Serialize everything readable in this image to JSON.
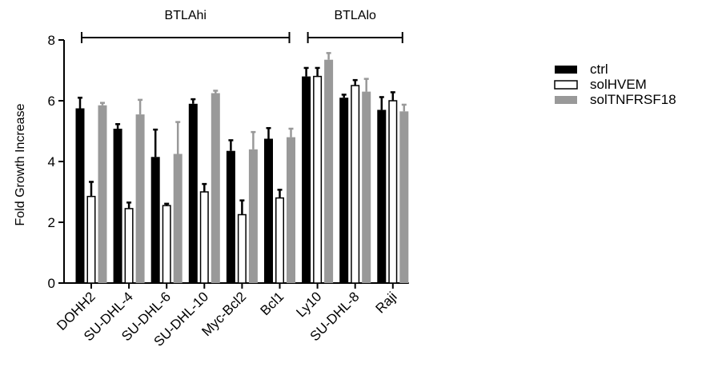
{
  "chart_data": {
    "type": "bar",
    "ylabel": "Fold Growth Increase",
    "xlabel": "",
    "ylim": [
      0,
      8
    ],
    "yticks": [
      0,
      2,
      4,
      6,
      8
    ],
    "categories": [
      "DOHH2",
      "SU-DHL-4",
      "SU-DHL-6",
      "SU-DHL-10",
      "Myc-Bcl2",
      "Bcl1",
      "Ly10",
      "SU-DHL-8",
      "Raji"
    ],
    "series": [
      {
        "name": "ctrl",
        "color": "#000000",
        "style": "filled",
        "values": [
          5.75,
          5.08,
          4.15,
          5.9,
          4.35,
          4.75,
          6.8,
          6.1,
          5.7
        ],
        "errors": [
          0.35,
          0.15,
          0.9,
          0.15,
          0.35,
          0.35,
          0.28,
          0.1,
          0.42
        ]
      },
      {
        "name": "solHVEM",
        "color": "#ffffff",
        "style": "outline",
        "values": [
          2.85,
          2.45,
          2.55,
          3.0,
          2.25,
          2.8,
          6.8,
          6.5,
          6.0
        ],
        "errors": [
          0.48,
          0.2,
          0.06,
          0.26,
          0.47,
          0.27,
          0.28,
          0.18,
          0.28
        ]
      },
      {
        "name": "solTNFRSF18",
        "color": "#999999",
        "style": "filled",
        "values": [
          5.85,
          5.55,
          4.25,
          6.25,
          4.4,
          4.8,
          7.35,
          6.3,
          5.65
        ],
        "errors": [
          0.08,
          0.48,
          1.05,
          0.08,
          0.57,
          0.28,
          0.22,
          0.42,
          0.22
        ]
      }
    ],
    "groups": [
      {
        "label": "BTLAhi",
        "from": 0,
        "to": 5
      },
      {
        "label": "BTLAlo",
        "from": 6,
        "to": 8
      }
    ],
    "legend_position": "right",
    "grid": false
  }
}
